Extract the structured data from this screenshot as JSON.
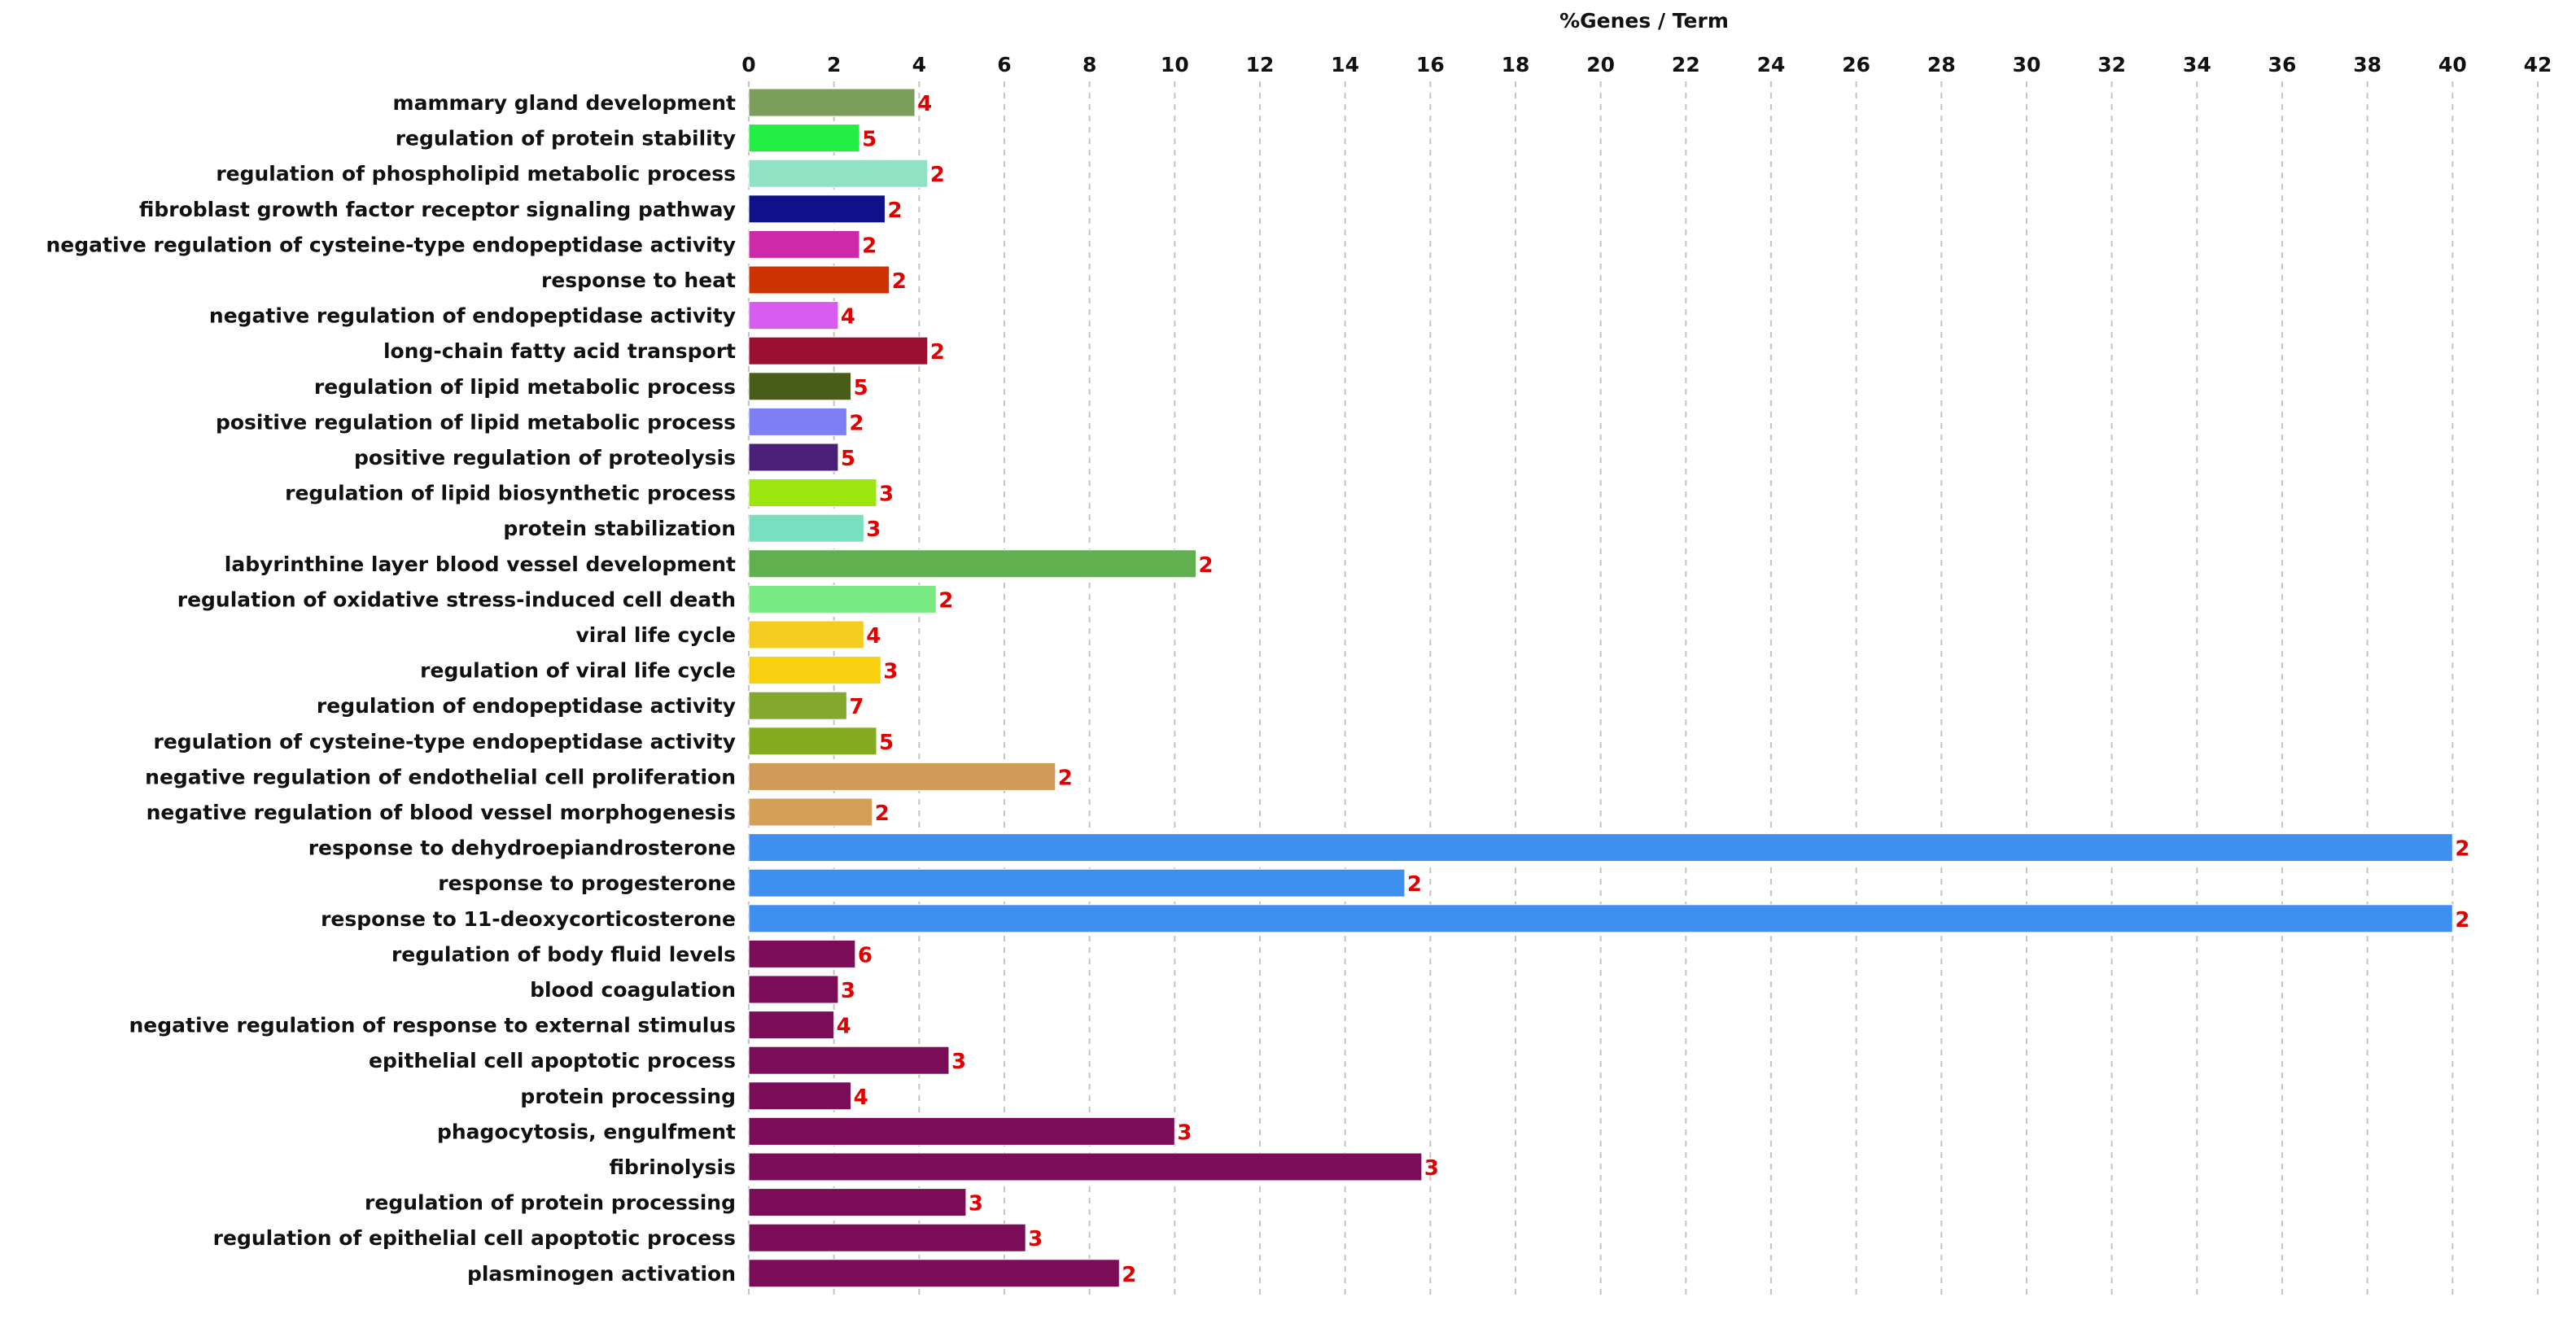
{
  "chart_data": {
    "type": "bar",
    "orientation": "horizontal",
    "title": "%Genes / Term",
    "xlim": [
      0,
      42
    ],
    "xticks": [
      "0",
      "2",
      "4",
      "6",
      "8",
      "10",
      "12",
      "14",
      "16",
      "18",
      "20",
      "22",
      "24",
      "26",
      "28",
      "30",
      "32",
      "34",
      "36",
      "38",
      "40",
      "42"
    ],
    "grid": true,
    "categories": [
      "mammary gland development",
      "regulation of protein stability",
      "regulation of phospholipid metabolic process",
      "fibroblast growth factor receptor signaling pathway",
      "negative regulation of cysteine-type endopeptidase activity",
      "response to heat",
      "negative regulation of endopeptidase activity",
      "long-chain fatty acid transport",
      "regulation of lipid metabolic process",
      "positive regulation of lipid metabolic process",
      "positive regulation of proteolysis",
      "regulation of lipid biosynthetic process",
      "protein stabilization",
      "labyrinthine layer blood vessel development",
      "regulation of oxidative stress-induced cell death",
      "viral life cycle",
      "regulation of viral life cycle",
      "regulation of endopeptidase activity",
      "regulation of cysteine-type endopeptidase activity",
      "negative regulation of endothelial cell proliferation",
      "negative regulation of blood vessel morphogenesis",
      "response to dehydroepiandrosterone",
      "response to progesterone",
      "response to 11-deoxycorticosterone",
      "regulation of body fluid levels",
      "blood coagulation",
      "negative regulation of response to external stimulus",
      "epithelial cell apoptotic process",
      "protein processing",
      "phagocytosis, engulfment",
      "fibrinolysis",
      "regulation of protein processing",
      "regulation of epithelial cell apoptotic process",
      "plasminogen activation"
    ],
    "values": [
      3.9,
      2.6,
      4.2,
      3.2,
      2.6,
      3.3,
      2.1,
      4.2,
      2.4,
      2.3,
      2.1,
      3.0,
      2.7,
      10.5,
      4.4,
      2.7,
      3.1,
      2.3,
      3.0,
      7.2,
      2.9,
      40.0,
      15.4,
      40.0,
      2.5,
      2.1,
      2.0,
      4.7,
      2.4,
      10.0,
      15.8,
      5.1,
      6.5,
      8.7
    ],
    "counts": [
      "4",
      "5",
      "2",
      "2",
      "2",
      "2",
      "4",
      "2",
      "5",
      "2",
      "5",
      "3",
      "3",
      "2",
      "2",
      "4",
      "3",
      "7",
      "5",
      "2",
      "2",
      "2",
      "2",
      "2",
      "6",
      "3",
      "4",
      "3",
      "4",
      "3",
      "3",
      "3",
      "3",
      "2"
    ],
    "colors": [
      "#7a9e5c",
      "#22ee44",
      "#8fe3c4",
      "#10108a",
      "#cc2aa8",
      "#cc3300",
      "#d85cf0",
      "#9a1030",
      "#485e18",
      "#7f7ff5",
      "#4a1f78",
      "#9ce60f",
      "#78e0c0",
      "#60b050",
      "#78ea82",
      "#f5cc20",
      "#f8d010",
      "#84a82c",
      "#84aa20",
      "#d09a58",
      "#d4a058",
      "#3e8ff0",
      "#3e8ff0",
      "#3e8ff0",
      "#7a0c58",
      "#7a0c58",
      "#7a0c58",
      "#7a0c58",
      "#7a0c58",
      "#7a0c58",
      "#7a0c58",
      "#7a0c58",
      "#7a0c58",
      "#7a0c58"
    ]
  }
}
